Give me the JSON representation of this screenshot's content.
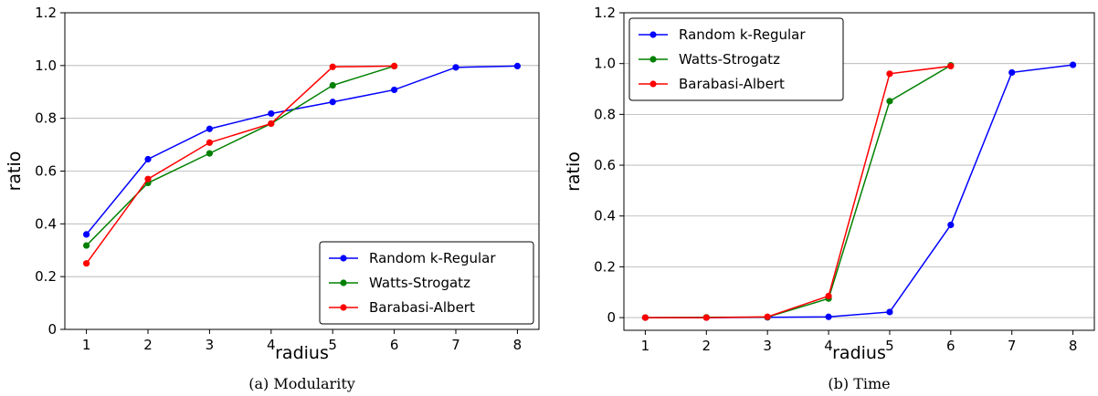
{
  "chart_data": [
    {
      "type": "line",
      "caption": "(a)  Modularity",
      "xlabel": "radius",
      "ylabel": "ratio",
      "xlim": [
        0.65,
        8.35
      ],
      "ylim": [
        0,
        1.2
      ],
      "xticks": [
        1,
        2,
        3,
        4,
        5,
        6,
        7,
        8
      ],
      "yticks": [
        0,
        0.2,
        0.4,
        0.6,
        0.8,
        1.0,
        1.2
      ],
      "ytick_labels": [
        "0",
        "0.2",
        "0.4",
        "0.6",
        "0.8",
        "1.0",
        "1.2"
      ],
      "grid": "horizontal",
      "legend_position": "lower-right",
      "series": [
        {
          "name": "Random k-Regular",
          "color": "#0000ff",
          "x": [
            1,
            2,
            3,
            4,
            5,
            6,
            7,
            8
          ],
          "y": [
            0.36,
            0.645,
            0.76,
            0.818,
            0.862,
            0.908,
            0.993,
            0.998
          ]
        },
        {
          "name": "Watts-Strogatz",
          "color": "#008000",
          "x": [
            1,
            2,
            3,
            4,
            5,
            6
          ],
          "y": [
            0.318,
            0.555,
            0.667,
            0.78,
            0.925,
            0.998
          ]
        },
        {
          "name": "Barabasi-Albert",
          "color": "#ff0000",
          "x": [
            1,
            2,
            3,
            4,
            5,
            6
          ],
          "y": [
            0.25,
            0.57,
            0.708,
            0.78,
            0.995,
            0.998
          ]
        }
      ]
    },
    {
      "type": "line",
      "caption": "(b)  Time",
      "xlabel": "radius",
      "ylabel": "ratio",
      "xlim": [
        0.65,
        8.35
      ],
      "ylim": [
        -0.05,
        1.2
      ],
      "xticks": [
        1,
        2,
        3,
        4,
        5,
        6,
        7,
        8
      ],
      "yticks": [
        0,
        0.2,
        0.4,
        0.6,
        0.8,
        1.0,
        1.2
      ],
      "ytick_labels": [
        "0",
        "0.2",
        "0.4",
        "0.6",
        "0.8",
        "1.0",
        "1.2"
      ],
      "grid": "horizontal",
      "legend_position": "upper-left",
      "series": [
        {
          "name": "Random k-Regular",
          "color": "#0000ff",
          "x": [
            1,
            2,
            3,
            4,
            5,
            6,
            7,
            8
          ],
          "y": [
            0.0,
            0.0,
            0.001,
            0.003,
            0.022,
            0.365,
            0.965,
            0.995
          ]
        },
        {
          "name": "Watts-Strogatz",
          "color": "#008000",
          "x": [
            1,
            2,
            3,
            4,
            5,
            6
          ],
          "y": [
            0.0,
            0.001,
            0.002,
            0.075,
            0.852,
            0.993
          ]
        },
        {
          "name": "Barabasi-Albert",
          "color": "#ff0000",
          "x": [
            1,
            2,
            3,
            4,
            5,
            6
          ],
          "y": [
            0.0,
            0.0,
            0.003,
            0.085,
            0.96,
            0.99
          ]
        }
      ]
    }
  ]
}
